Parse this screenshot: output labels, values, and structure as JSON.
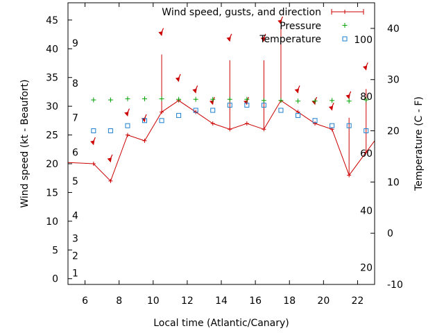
{
  "chart_data": {
    "type": "line",
    "xlabel": "Local time (Atlantic/Canary)",
    "ylabel_left": "Wind speed (kt - Beaufort)",
    "ylabel_right": "Temperature (C - F)",
    "xlim": [
      5,
      23
    ],
    "ylim_left": [
      -1,
      48
    ],
    "ylim_right": [
      -10,
      45
    ],
    "x_ticks": [
      6,
      8,
      10,
      12,
      14,
      16,
      18,
      20,
      22
    ],
    "y_ticks_left": [
      0,
      5,
      10,
      15,
      20,
      25,
      30,
      35,
      40,
      45
    ],
    "y_ticks_right": [
      -10,
      0,
      10,
      20,
      30,
      40
    ],
    "beaufort_labels": [
      {
        "label": "1",
        "kt": 1
      },
      {
        "label": "2",
        "kt": 4
      },
      {
        "label": "3",
        "kt": 7
      },
      {
        "label": "4",
        "kt": 11
      },
      {
        "label": "5",
        "kt": 17
      },
      {
        "label": "6",
        "kt": 22
      },
      {
        "label": "7",
        "kt": 28
      },
      {
        "label": "8",
        "kt": 34
      },
      {
        "label": "9",
        "kt": 41
      }
    ],
    "fahrenheit_labels": [
      {
        "label": "20",
        "celsius": -6.7
      },
      {
        "label": "40",
        "celsius": 4.4
      },
      {
        "label": "60",
        "celsius": 15.6
      },
      {
        "label": "80",
        "celsius": 26.7
      },
      {
        "label": "100",
        "celsius": 37.8
      }
    ],
    "grid": false,
    "legend_position": "top-right",
    "series": [
      {
        "name": "Wind speed, gusts, and direction",
        "color": "#cc0000",
        "line_x": [
          5,
          6.5,
          7.5,
          8.5,
          9.5,
          10.5,
          11.5,
          12.5,
          13.5,
          14.5,
          15.5,
          16.5,
          17.5,
          18.5,
          19.5,
          20.5,
          21.5,
          22.5,
          23
        ],
        "line_y": [
          20.2,
          20,
          17,
          25,
          24,
          29,
          31,
          29,
          27,
          26,
          27,
          26,
          31,
          29,
          27,
          26,
          18,
          22,
          24
        ],
        "points": [
          {
            "x": 6.5,
            "y": 20,
            "gust": 20
          },
          {
            "x": 7.5,
            "y": 17,
            "gust": 17
          },
          {
            "x": 8.5,
            "y": 25,
            "gust": 25
          },
          {
            "x": 9.5,
            "y": 24,
            "gust": 24
          },
          {
            "x": 10.5,
            "y": 29,
            "gust": 39
          },
          {
            "x": 11.5,
            "y": 31,
            "gust": 31
          },
          {
            "x": 12.5,
            "y": 29,
            "gust": 29
          },
          {
            "x": 13.5,
            "y": 27,
            "gust": 27
          },
          {
            "x": 14.5,
            "y": 26,
            "gust": 38
          },
          {
            "x": 15.5,
            "y": 27,
            "gust": 27
          },
          {
            "x": 16.5,
            "y": 26,
            "gust": 38
          },
          {
            "x": 17.5,
            "y": 31,
            "gust": 44
          },
          {
            "x": 18.5,
            "y": 29,
            "gust": 29
          },
          {
            "x": 19.5,
            "y": 27,
            "gust": 27
          },
          {
            "x": 20.5,
            "y": 26,
            "gust": 26
          },
          {
            "x": 21.5,
            "y": 18,
            "gust": 28
          },
          {
            "x": 22.5,
            "y": 22,
            "gust": 33
          }
        ],
        "direction_arrows": [
          {
            "x": 6.5,
            "y": 23.5
          },
          {
            "x": 7.5,
            "y": 20.5
          },
          {
            "x": 8.5,
            "y": 28.5
          },
          {
            "x": 9.5,
            "y": 27.5
          },
          {
            "x": 10.5,
            "y": 42.5
          },
          {
            "x": 11.5,
            "y": 34.5
          },
          {
            "x": 12.5,
            "y": 32.5
          },
          {
            "x": 13.5,
            "y": 30.5
          },
          {
            "x": 14.5,
            "y": 41.5
          },
          {
            "x": 15.5,
            "y": 30.5
          },
          {
            "x": 16.5,
            "y": 41.5
          },
          {
            "x": 17.5,
            "y": 44.5
          },
          {
            "x": 18.5,
            "y": 32.5
          },
          {
            "x": 19.5,
            "y": 30.5
          },
          {
            "x": 20.5,
            "y": 29.5
          },
          {
            "x": 21.5,
            "y": 31.5
          },
          {
            "x": 22.5,
            "y": 36.5
          }
        ]
      },
      {
        "name": "Pressure",
        "color": "#00a000",
        "x": [
          6.5,
          7.5,
          8.5,
          9.5,
          10.5,
          11.5,
          12.5,
          13.5,
          14.5,
          15.5,
          16.5,
          17.5,
          18.5,
          19.5,
          20.5,
          21.5,
          22.5
        ],
        "y": [
          31.1,
          31.1,
          31.3,
          31.3,
          31.3,
          31.2,
          31.2,
          31.2,
          31.2,
          31.2,
          31.0,
          31.0,
          30.9,
          30.9,
          31.0,
          30.9,
          31.1
        ]
      },
      {
        "name": "Temperature",
        "color": "#1a7fd0",
        "x": [
          6.5,
          7.5,
          8.5,
          9.5,
          10.5,
          11.5,
          12.5,
          13.5,
          14.5,
          15.5,
          16.5,
          17.5,
          18.5,
          19.5,
          20.5,
          21.5,
          22.5
        ],
        "y": [
          20,
          20,
          21,
          22,
          22,
          23,
          24,
          24,
          25,
          25,
          25,
          24,
          23,
          22,
          21,
          21,
          20
        ]
      }
    ]
  }
}
